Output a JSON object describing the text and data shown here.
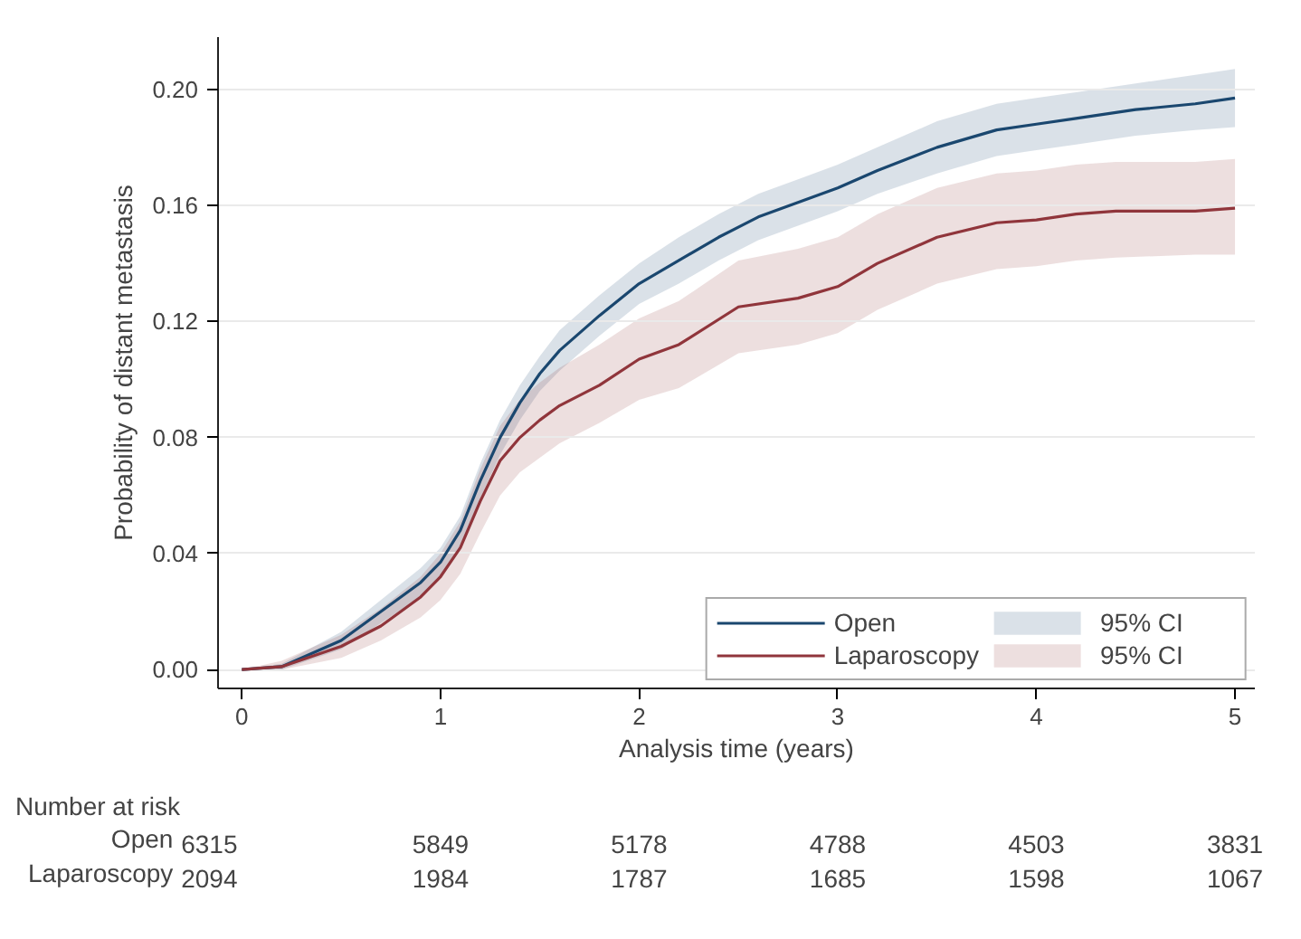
{
  "chart_data": {
    "type": "line",
    "xlabel": "Analysis time (years)",
    "ylabel": "Probability of distant metastasis",
    "xlim": [
      -0.12,
      5.1
    ],
    "ylim": [
      -0.0065,
      0.218
    ],
    "xticks": [
      0,
      1,
      2,
      3,
      4,
      5
    ],
    "yticks": [
      {
        "value": 0,
        "label": "0.00"
      },
      {
        "value": 0.04,
        "label": "0.04"
      },
      {
        "value": 0.08,
        "label": "0.08"
      },
      {
        "value": 0.12,
        "label": "0.12"
      },
      {
        "value": 0.16,
        "label": "0.16"
      },
      {
        "value": 0.2,
        "label": "0.20"
      }
    ],
    "grid": "y",
    "legend": "bottom right",
    "marker": "none",
    "line_style": "solid",
    "series": [
      {
        "name": "Open",
        "color": "#1a476f",
        "x": [
          0,
          0.2,
          0.5,
          0.7,
          0.9,
          1.0,
          1.1,
          1.2,
          1.3,
          1.4,
          1.5,
          1.6,
          1.7,
          1.8,
          2.0,
          2.2,
          2.4,
          2.6,
          2.8,
          3.0,
          3.2,
          3.5,
          3.8,
          4.0,
          4.2,
          4.5,
          4.8,
          5.0
        ],
        "values": [
          0,
          0.001,
          0.01,
          0.02,
          0.03,
          0.037,
          0.048,
          0.065,
          0.08,
          0.092,
          0.102,
          0.11,
          0.116,
          0.122,
          0.133,
          0.141,
          0.149,
          0.156,
          0.161,
          0.166,
          0.172,
          0.18,
          0.186,
          0.188,
          0.19,
          0.193,
          0.195,
          0.197
        ],
        "lower": [
          0,
          0,
          0.007,
          0.016,
          0.025,
          0.032,
          0.043,
          0.059,
          0.074,
          0.086,
          0.096,
          0.103,
          0.109,
          0.115,
          0.126,
          0.133,
          0.141,
          0.148,
          0.153,
          0.158,
          0.164,
          0.171,
          0.177,
          0.179,
          0.181,
          0.184,
          0.186,
          0.187
        ],
        "upper": [
          0,
          0.002,
          0.013,
          0.024,
          0.035,
          0.042,
          0.053,
          0.071,
          0.086,
          0.098,
          0.108,
          0.117,
          0.123,
          0.129,
          0.14,
          0.149,
          0.157,
          0.164,
          0.169,
          0.174,
          0.18,
          0.189,
          0.195,
          0.197,
          0.199,
          0.202,
          0.205,
          0.207
        ]
      },
      {
        "name": "Laparoscopy",
        "color": "#90353b",
        "x": [
          0,
          0.2,
          0.5,
          0.7,
          0.9,
          1.0,
          1.1,
          1.2,
          1.3,
          1.4,
          1.5,
          1.6,
          1.8,
          2.0,
          2.2,
          2.5,
          2.8,
          3.0,
          3.2,
          3.5,
          3.8,
          4.0,
          4.2,
          4.4,
          4.8,
          5.0
        ],
        "values": [
          0,
          0.001,
          0.008,
          0.015,
          0.025,
          0.032,
          0.042,
          0.058,
          0.072,
          0.08,
          0.086,
          0.091,
          0.098,
          0.107,
          0.112,
          0.125,
          0.128,
          0.132,
          0.14,
          0.149,
          0.154,
          0.155,
          0.157,
          0.158,
          0.158,
          0.159
        ],
        "lower": [
          0,
          0,
          0.004,
          0.01,
          0.018,
          0.024,
          0.033,
          0.047,
          0.06,
          0.068,
          0.073,
          0.078,
          0.085,
          0.093,
          0.097,
          0.109,
          0.112,
          0.116,
          0.124,
          0.133,
          0.138,
          0.139,
          0.141,
          0.142,
          0.143,
          0.143
        ],
        "upper": [
          0,
          0.003,
          0.012,
          0.021,
          0.032,
          0.04,
          0.051,
          0.069,
          0.084,
          0.093,
          0.099,
          0.104,
          0.112,
          0.121,
          0.127,
          0.141,
          0.145,
          0.149,
          0.157,
          0.166,
          0.171,
          0.172,
          0.174,
          0.175,
          0.175,
          0.176
        ]
      }
    ],
    "annotations": [
      "95% CI",
      "95% CI",
      "Number at risk",
      "Open",
      "6315",
      "5849",
      "5178",
      "4788",
      "4503",
      "3831",
      "Laparoscopy",
      "2094",
      "1984",
      "1787",
      "1685",
      "1598",
      "1067"
    ]
  }
}
